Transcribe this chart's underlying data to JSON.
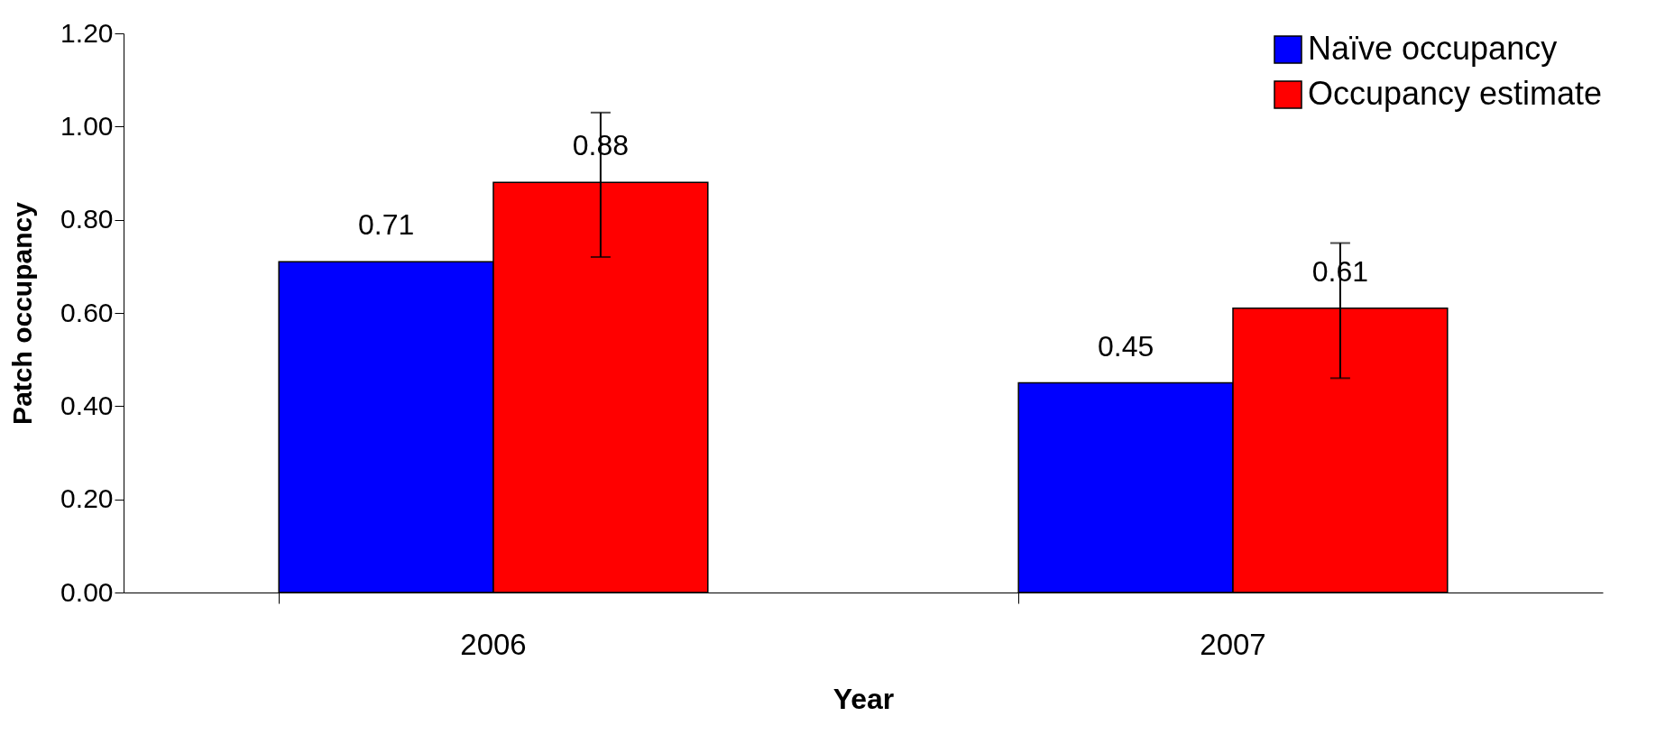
{
  "chart_data": {
    "type": "bar",
    "xlabel": "Year",
    "ylabel": "Patch occupancy",
    "categories": [
      "2006",
      "2007"
    ],
    "series": [
      {
        "name": "Naïve occupancy",
        "color": "#0000ff",
        "values": [
          0.71,
          0.45
        ]
      },
      {
        "name": "Occupancy estimate",
        "color": "#ff0000",
        "values": [
          0.88,
          0.61
        ],
        "errors": [
          [
            0.72,
            1.03
          ],
          [
            0.46,
            0.75
          ]
        ]
      }
    ],
    "ylim": [
      0,
      1.2
    ],
    "yticks": [
      {
        "value": 0,
        "label": "0.00"
      },
      {
        "value": 0.2,
        "label": "0.20"
      },
      {
        "value": 0.4,
        "label": "0.40"
      },
      {
        "value": 0.6,
        "label": "0.60"
      },
      {
        "value": 0.8,
        "label": "0.80"
      },
      {
        "value": 1,
        "label": "1.00"
      },
      {
        "value": 1.2,
        "label": "1.20"
      }
    ],
    "data_labels": true,
    "legend": "top right",
    "grid": false
  }
}
